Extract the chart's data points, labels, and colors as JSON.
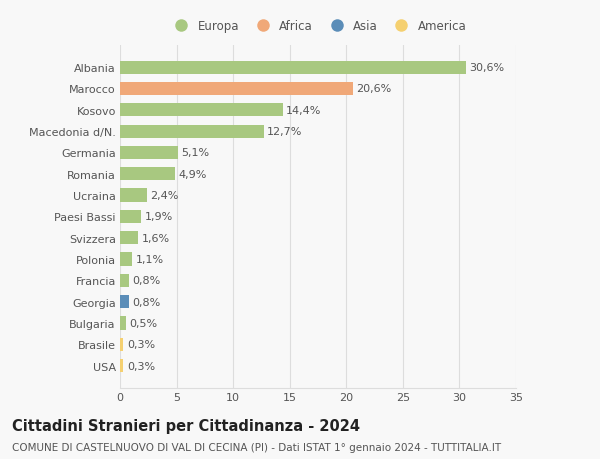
{
  "categories": [
    "Albania",
    "Marocco",
    "Kosovo",
    "Macedonia d/N.",
    "Germania",
    "Romania",
    "Ucraina",
    "Paesi Bassi",
    "Svizzera",
    "Polonia",
    "Francia",
    "Georgia",
    "Bulgaria",
    "Brasile",
    "USA"
  ],
  "values": [
    30.6,
    20.6,
    14.4,
    12.7,
    5.1,
    4.9,
    2.4,
    1.9,
    1.6,
    1.1,
    0.8,
    0.8,
    0.5,
    0.3,
    0.3
  ],
  "labels": [
    "30,6%",
    "20,6%",
    "14,4%",
    "12,7%",
    "5,1%",
    "4,9%",
    "2,4%",
    "1,9%",
    "1,6%",
    "1,1%",
    "0,8%",
    "0,8%",
    "0,5%",
    "0,3%",
    "0,3%"
  ],
  "colors": [
    "#a8c880",
    "#f0a878",
    "#a8c880",
    "#a8c880",
    "#a8c880",
    "#a8c880",
    "#a8c880",
    "#a8c880",
    "#a8c880",
    "#a8c880",
    "#a8c880",
    "#5b8db8",
    "#a8c880",
    "#f5d070",
    "#f5d070"
  ],
  "legend_labels": [
    "Europa",
    "Africa",
    "Asia",
    "America"
  ],
  "legend_colors": [
    "#a8c880",
    "#f0a878",
    "#5b8db8",
    "#f5d070"
  ],
  "title": "Cittadini Stranieri per Cittadinanza - 2024",
  "subtitle": "COMUNE DI CASTELNUOVO DI VAL DI CECINA (PI) - Dati ISTAT 1° gennaio 2024 - TUTTITALIA.IT",
  "xlim": [
    0,
    35
  ],
  "xticks": [
    0,
    5,
    10,
    15,
    20,
    25,
    30,
    35
  ],
  "background_color": "#f8f8f8",
  "grid_color": "#dddddd",
  "bar_height": 0.62,
  "title_fontsize": 10.5,
  "subtitle_fontsize": 7.5,
  "label_fontsize": 8,
  "tick_fontsize": 8,
  "legend_fontsize": 8.5
}
